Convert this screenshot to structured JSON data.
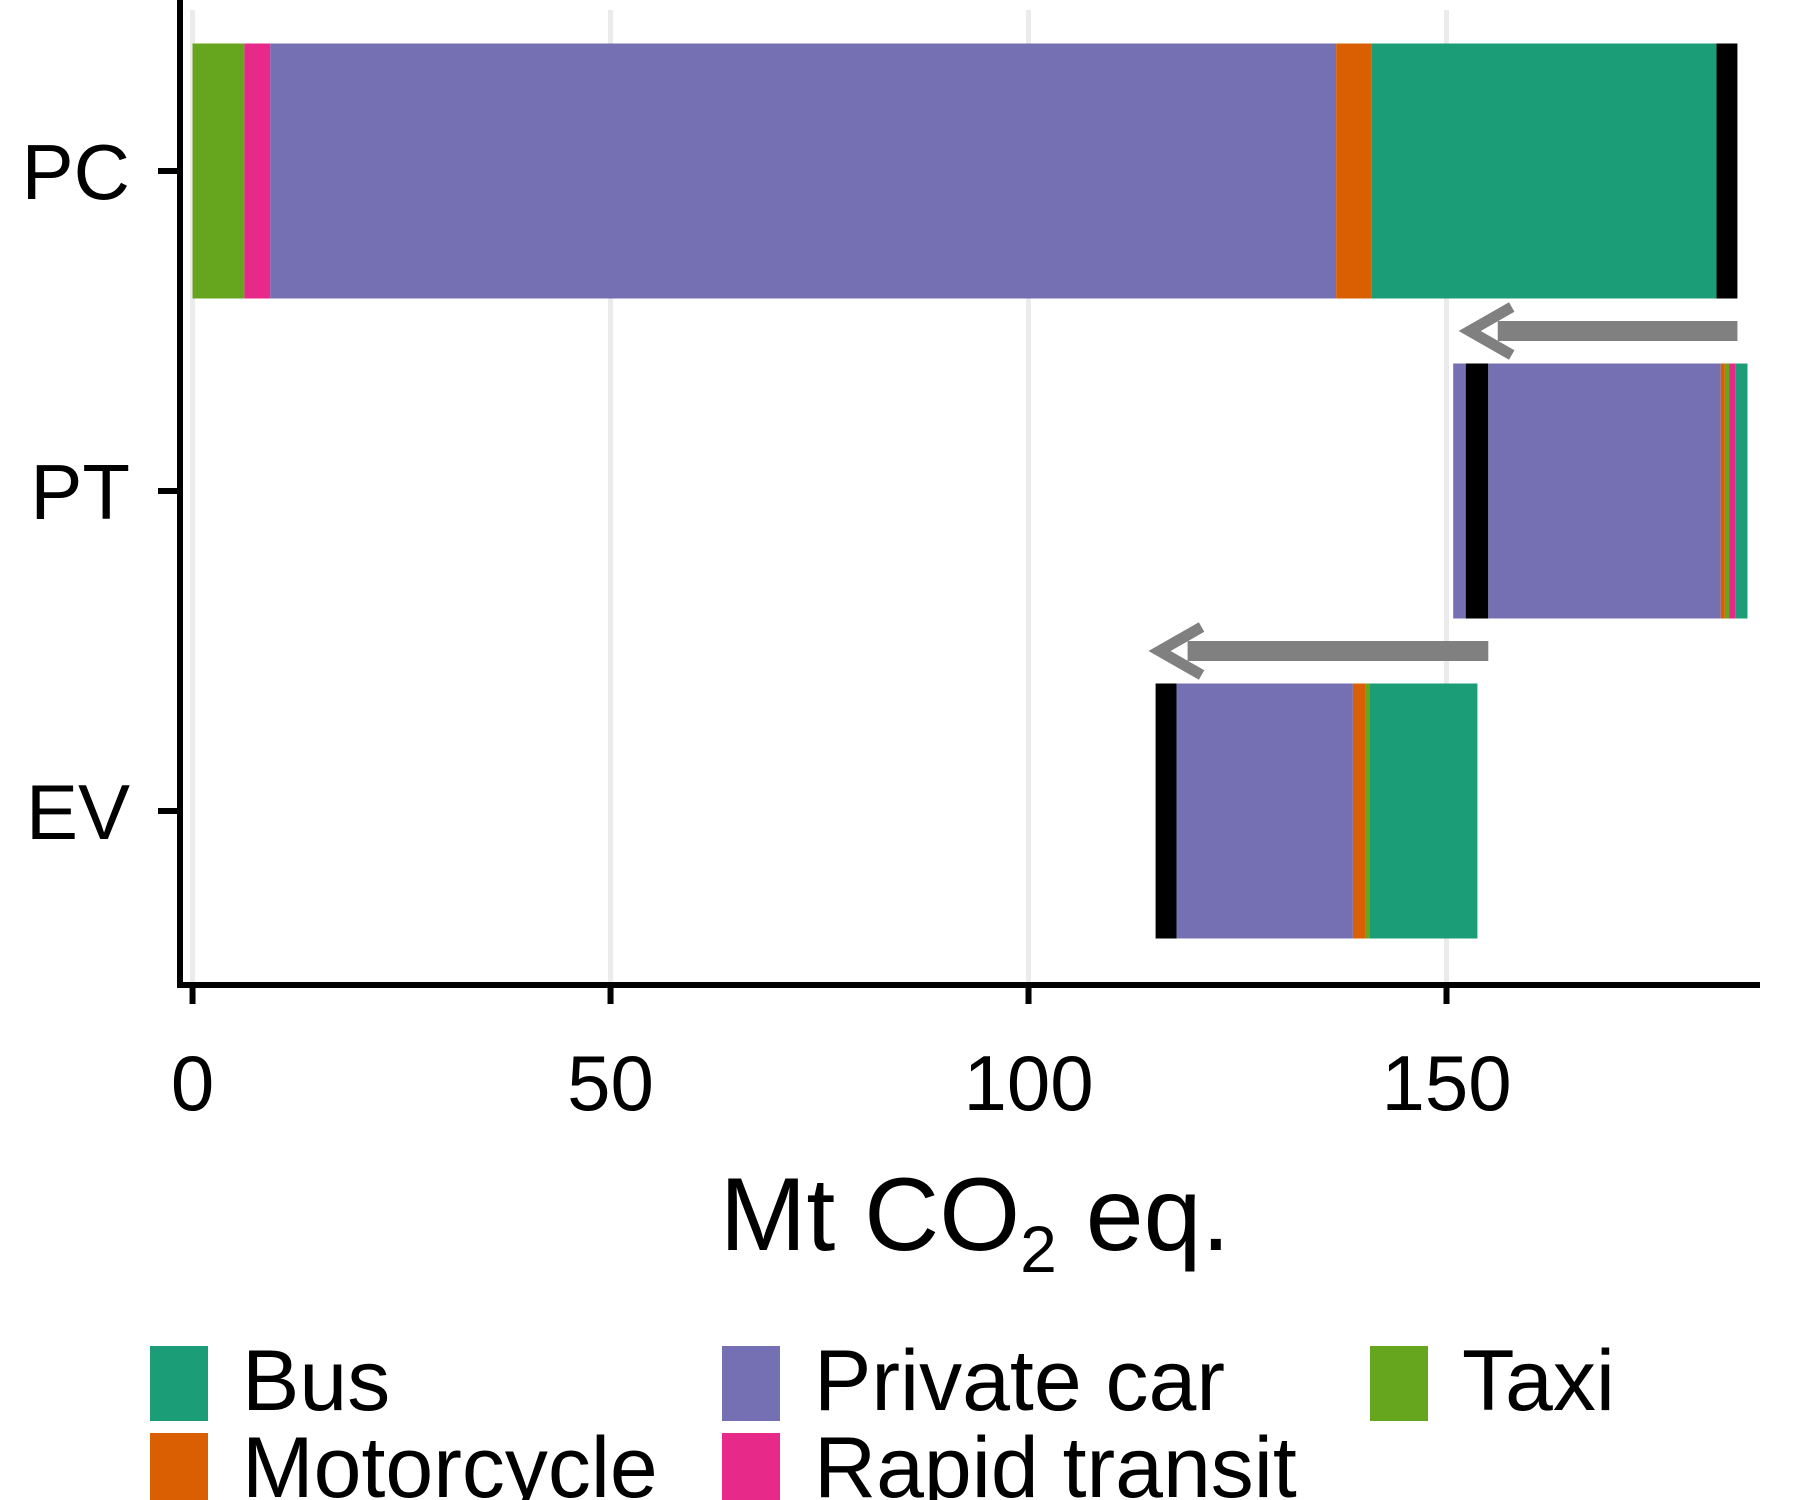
{
  "chart_data": {
    "type": "bar",
    "orientation": "horizontal",
    "stacked": true,
    "categories": [
      "PC",
      "PT",
      "EV"
    ],
    "xlabel": {
      "prefix": "Mt CO",
      "subscript": "2",
      "suffix": " eq."
    },
    "ylabel": "",
    "xlim": [
      -1.5,
      187.5
    ],
    "x_ticks": [
      0,
      50,
      100,
      150
    ],
    "grid": {
      "vertical": true,
      "horizontal": false
    },
    "colors": {
      "Bus": "#1b9e77",
      "Motorcycle": "#d95f02",
      "Private car": "#7570b3",
      "Rapid transit": "#e7298a",
      "Taxi": "#66a61e",
      "Net": "#000000",
      "arrow": "#808080",
      "gridline": "#ebebeb",
      "axis": "#000000"
    },
    "segments": {
      "PC": [
        {
          "series": "Taxi",
          "start": 0,
          "end": 6.2
        },
        {
          "series": "Rapid transit",
          "start": 6.2,
          "end": 9.3
        },
        {
          "series": "Private car",
          "start": 9.3,
          "end": 136.8
        },
        {
          "series": "Motorcycle",
          "start": 136.8,
          "end": 141
        },
        {
          "series": "Bus",
          "start": 141,
          "end": 182.3
        },
        {
          "series": "Net",
          "start": 182.3,
          "end": 184.8
        }
      ],
      "PT": [
        {
          "series": "Private car",
          "start": 150.8,
          "end": 152.3
        },
        {
          "series": "Net",
          "start": 152.3,
          "end": 155
        },
        {
          "series": "Private car",
          "start": 155,
          "end": 182.8
        },
        {
          "series": "Motorcycle",
          "start": 182.8,
          "end": 183.3
        },
        {
          "series": "Taxi",
          "start": 183.3,
          "end": 183.8
        },
        {
          "series": "Rapid transit",
          "start": 183.8,
          "end": 184.6
        },
        {
          "series": "Bus",
          "start": 184.6,
          "end": 186
        }
      ],
      "EV": [
        {
          "series": "Net",
          "start": 115.2,
          "end": 117.7
        },
        {
          "series": "Private car",
          "start": 117.7,
          "end": 138.8
        },
        {
          "series": "Motorcycle",
          "start": 138.8,
          "end": 140.3
        },
        {
          "series": "Taxi",
          "start": 140.3,
          "end": 140.8
        },
        {
          "series": "Bus",
          "start": 140.8,
          "end": 153.7
        }
      ]
    },
    "arrows": [
      {
        "from_x": 184.8,
        "to_x": 152.3,
        "between": [
          "PC",
          "PT"
        ]
      },
      {
        "from_x": 155,
        "to_x": 115.2,
        "between": [
          "PT",
          "EV"
        ]
      }
    ],
    "legend": {
      "position": "bottom",
      "rows": [
        [
          "Bus",
          "Private car",
          "Taxi"
        ],
        [
          "Motorcycle",
          "Rapid transit"
        ]
      ]
    }
  }
}
